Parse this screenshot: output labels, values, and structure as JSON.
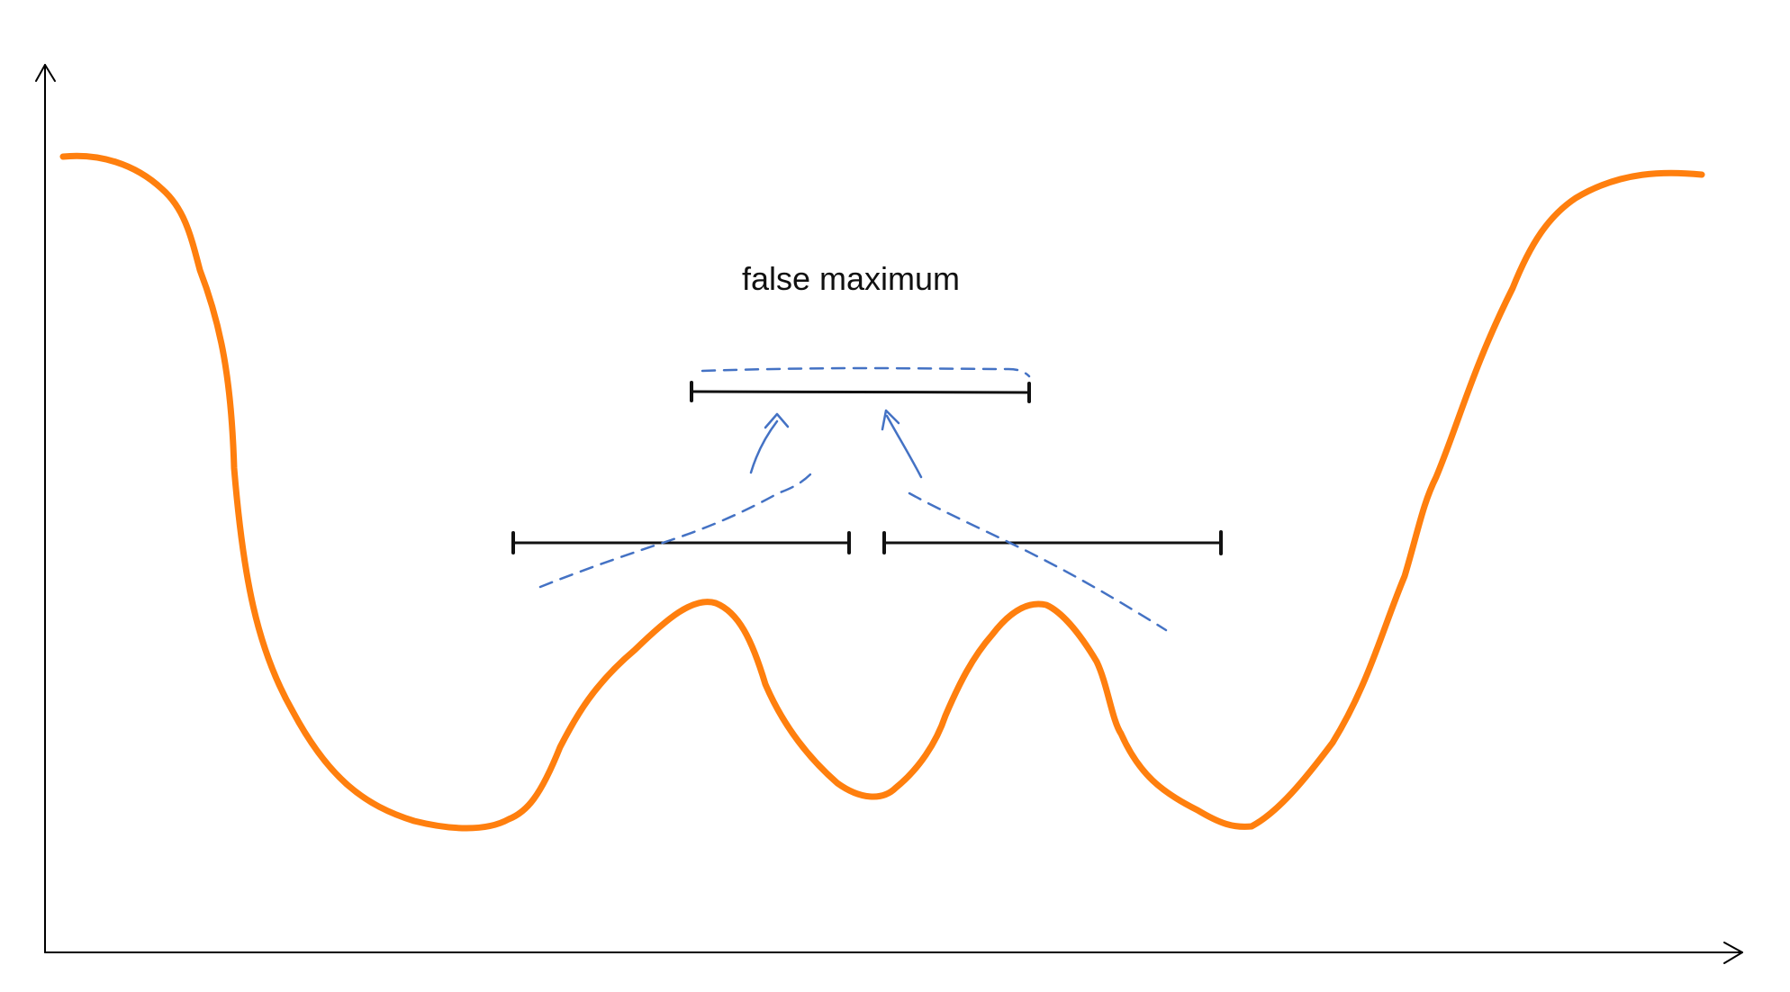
{
  "annotation": {
    "label": "false maximum"
  },
  "colors": {
    "curve": "#ff7f0e",
    "guide": "#4472c4",
    "axis": "#000000"
  }
}
